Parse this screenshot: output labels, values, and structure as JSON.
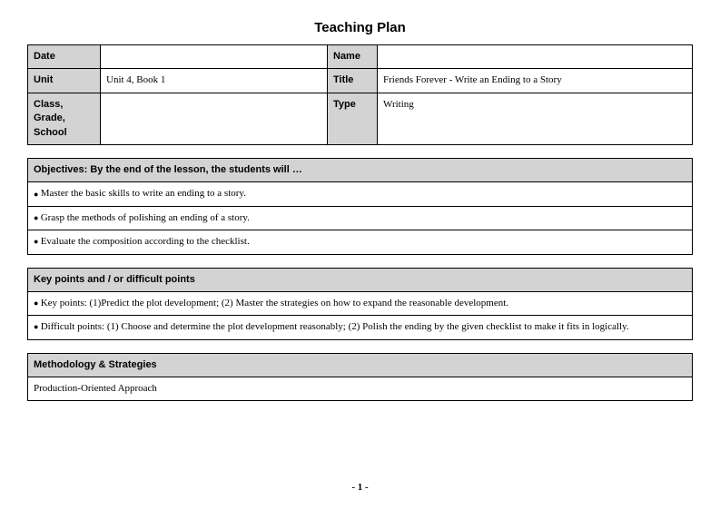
{
  "page": {
    "title": "Teaching Plan",
    "pageNumber": "- 1 -"
  },
  "info": {
    "dateLabel": "Date",
    "dateValue": "",
    "nameLabel": "Name",
    "nameValue": "",
    "unitLabel": "Unit",
    "unitValue": "Unit 4, Book 1",
    "titleLabel": "Title",
    "titleValue": "Friends Forever - Write an Ending to a Story",
    "classLabel": "Class, Grade, School",
    "classValue": "",
    "typeLabel": "Type",
    "typeValue": "Writing"
  },
  "objectives": {
    "header": "Objectives: By the end of the lesson, the students will …",
    "items": [
      "Master the basic skills to write an ending to a story.",
      "Grasp the methods of polishing an ending of a story.",
      "Evaluate the composition according to the checklist."
    ]
  },
  "keypoints": {
    "header": "Key points and / or difficult points",
    "items": [
      "Key points: (1)Predict the plot development; (2) Master the strategies on how to expand the reasonable development.",
      "Difficult points: (1) Choose and determine the plot development reasonably; (2) Polish the ending by the given checklist to make it fits in logically."
    ]
  },
  "methodology": {
    "header": "Methodology & Strategies",
    "body": "Production-Oriented Approach"
  }
}
